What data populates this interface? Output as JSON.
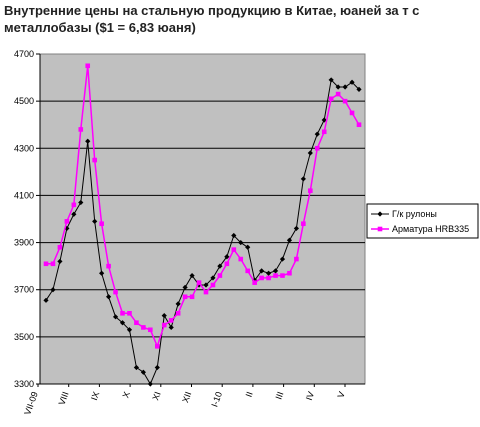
{
  "title": "Внутренние цены на стальную продукцию в Китае, юаней за т с металлобазы ($1 = 6,83 юаня)",
  "chart_data": {
    "type": "line",
    "title": "Внутренние цены на стальную продукцию в Китае, юаней за т с металлобазы ($1 = 6,83 юаня)",
    "xlabel": "",
    "ylabel": "",
    "ylim": [
      3300,
      4700
    ],
    "yticks": [
      3300,
      3500,
      3700,
      3900,
      4100,
      4300,
      4500,
      4700
    ],
    "x_tick_labels": [
      "VII-09",
      "VIII",
      "IX",
      "X",
      "XI",
      "XII",
      "I-10",
      "II",
      "III",
      "IV",
      "V"
    ],
    "grid": true,
    "legend_position": "right",
    "background": "#c0c0c0",
    "series": [
      {
        "name": "Г/к рулоны",
        "color": "#000000",
        "marker": "diamond",
        "values": [
          3655,
          3700,
          3820,
          3960,
          4020,
          4070,
          4330,
          3990,
          3770,
          3670,
          3585,
          3560,
          3530,
          3370,
          3350,
          3300,
          3370,
          3590,
          3540,
          3640,
          3710,
          3760,
          3720,
          3720,
          3750,
          3800,
          3840,
          3930,
          3900,
          3880,
          3740,
          3780,
          3770,
          3780,
          3830,
          3910,
          3960,
          4170,
          4280,
          4360,
          4420,
          4590,
          4560,
          4560,
          4580,
          4550
        ]
      },
      {
        "name": "Арматура HRB335",
        "color": "#ff00ff",
        "marker": "square",
        "values": [
          3810,
          3810,
          3880,
          3990,
          4060,
          4380,
          4650,
          4250,
          3980,
          3800,
          3690,
          3600,
          3600,
          3560,
          3540,
          3530,
          3460,
          3550,
          3570,
          3600,
          3670,
          3670,
          3730,
          3690,
          3720,
          3760,
          3810,
          3870,
          3830,
          3780,
          3730,
          3750,
          3750,
          3760,
          3760,
          3770,
          3830,
          3980,
          4120,
          4300,
          4370,
          4510,
          4530,
          4500,
          4450,
          4400
        ]
      }
    ]
  }
}
